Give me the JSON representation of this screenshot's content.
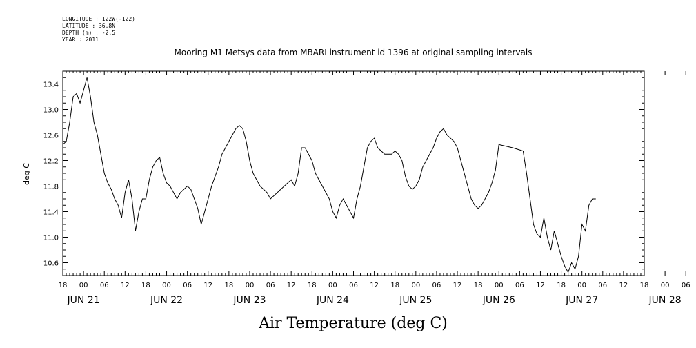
{
  "header": {
    "longitude": "LONGITUDE : 122W(-122)",
    "latitude": "LATITUDE : 36.8N",
    "depth": "DEPTH (m) : -2.5",
    "year": "YEAR : 2011"
  },
  "chart_data": {
    "type": "line",
    "title": "Mooring M1 Metsys data from MBARI instrument id 1396 at original sampling intervals",
    "xlabel": "Air Temperature (deg C)",
    "ylabel": "deg C",
    "ylim": [
      10.4,
      13.6
    ],
    "xlim_hours": [
      -6,
      162
    ],
    "y_ticks": [
      "10.6",
      "11.0",
      "11.4",
      "11.8",
      "12.2",
      "12.6",
      "13.0",
      "13.4"
    ],
    "x_hour_ticks": [
      "18",
      "00",
      "06",
      "12",
      "18",
      "00",
      "06",
      "12",
      "18",
      "00",
      "06",
      "12",
      "18",
      "00",
      "06",
      "12",
      "18",
      "00",
      "06",
      "12",
      "18",
      "00",
      "06",
      "12",
      "18",
      "00",
      "06",
      "12",
      "18",
      "00",
      "06",
      "12",
      "18"
    ],
    "x_day_ticks": [
      "JUN 21",
      "JUN 22",
      "JUN 23",
      "JUN 24",
      "JUN 25",
      "JUN 26",
      "JUN 27",
      "JUN 28"
    ],
    "grid": false,
    "series": [
      {
        "color": "#000000",
        "points": [
          [
            -6,
            12.45
          ],
          [
            -5,
            12.5
          ],
          [
            -4,
            12.8
          ],
          [
            -3,
            13.2
          ],
          [
            -2,
            13.25
          ],
          [
            -1,
            13.1
          ],
          [
            0,
            13.3
          ],
          [
            1,
            13.5
          ],
          [
            2,
            13.2
          ],
          [
            3,
            12.8
          ],
          [
            4,
            12.6
          ],
          [
            5,
            12.3
          ],
          [
            6,
            12.0
          ],
          [
            7,
            11.85
          ],
          [
            8,
            11.75
          ],
          [
            9,
            11.6
          ],
          [
            10,
            11.5
          ],
          [
            11,
            11.3
          ],
          [
            12,
            11.7
          ],
          [
            13,
            11.9
          ],
          [
            14,
            11.6
          ],
          [
            15,
            11.1
          ],
          [
            16,
            11.4
          ],
          [
            17,
            11.6
          ],
          [
            18,
            11.6
          ],
          [
            19,
            11.9
          ],
          [
            20,
            12.1
          ],
          [
            21,
            12.2
          ],
          [
            22,
            12.25
          ],
          [
            23,
            12.0
          ],
          [
            24,
            11.85
          ],
          [
            25,
            11.8
          ],
          [
            26,
            11.7
          ],
          [
            27,
            11.6
          ],
          [
            28,
            11.7
          ],
          [
            29,
            11.75
          ],
          [
            30,
            11.8
          ],
          [
            31,
            11.75
          ],
          [
            32,
            11.6
          ],
          [
            33,
            11.45
          ],
          [
            34,
            11.2
          ],
          [
            35,
            11.4
          ],
          [
            36,
            11.6
          ],
          [
            37,
            11.8
          ],
          [
            38,
            11.95
          ],
          [
            39,
            12.1
          ],
          [
            40,
            12.3
          ],
          [
            41,
            12.4
          ],
          [
            42,
            12.5
          ],
          [
            43,
            12.6
          ],
          [
            44,
            12.7
          ],
          [
            45,
            12.75
          ],
          [
            46,
            12.7
          ],
          [
            47,
            12.5
          ],
          [
            48,
            12.2
          ],
          [
            49,
            12.0
          ],
          [
            50,
            11.9
          ],
          [
            51,
            11.8
          ],
          [
            52,
            11.75
          ],
          [
            53,
            11.7
          ],
          [
            54,
            11.6
          ],
          [
            55,
            11.65
          ],
          [
            56,
            11.7
          ],
          [
            57,
            11.75
          ],
          [
            58,
            11.8
          ],
          [
            59,
            11.85
          ],
          [
            60,
            11.9
          ],
          [
            61,
            11.8
          ],
          [
            62,
            12.0
          ],
          [
            63,
            12.4
          ],
          [
            64,
            12.4
          ],
          [
            65,
            12.3
          ],
          [
            66,
            12.2
          ],
          [
            67,
            12.0
          ],
          [
            68,
            11.9
          ],
          [
            69,
            11.8
          ],
          [
            70,
            11.7
          ],
          [
            71,
            11.6
          ],
          [
            72,
            11.4
          ],
          [
            73,
            11.3
          ],
          [
            74,
            11.5
          ],
          [
            75,
            11.6
          ],
          [
            76,
            11.5
          ],
          [
            77,
            11.4
          ],
          [
            78,
            11.3
          ],
          [
            79,
            11.6
          ],
          [
            80,
            11.8
          ],
          [
            81,
            12.1
          ],
          [
            82,
            12.4
          ],
          [
            83,
            12.5
          ],
          [
            84,
            12.55
          ],
          [
            85,
            12.4
          ],
          [
            86,
            12.35
          ],
          [
            87,
            12.3
          ],
          [
            88,
            12.3
          ],
          [
            89,
            12.3
          ],
          [
            90,
            12.35
          ],
          [
            91,
            12.3
          ],
          [
            92,
            12.2
          ],
          [
            93,
            11.95
          ],
          [
            94,
            11.8
          ],
          [
            95,
            11.75
          ],
          [
            96,
            11.8
          ],
          [
            97,
            11.9
          ],
          [
            98,
            12.1
          ],
          [
            99,
            12.2
          ],
          [
            100,
            12.3
          ],
          [
            101,
            12.4
          ],
          [
            102,
            12.55
          ],
          [
            103,
            12.65
          ],
          [
            104,
            12.7
          ],
          [
            105,
            12.6
          ],
          [
            106,
            12.55
          ],
          [
            107,
            12.5
          ],
          [
            108,
            12.4
          ],
          [
            109,
            12.2
          ],
          [
            110,
            12.0
          ],
          [
            111,
            11.8
          ],
          [
            112,
            11.6
          ],
          [
            113,
            11.5
          ],
          [
            114,
            11.45
          ],
          [
            115,
            11.5
          ],
          [
            116,
            11.6
          ],
          [
            117,
            11.7
          ],
          [
            118,
            11.85
          ],
          [
            119,
            12.05
          ],
          [
            120,
            12.45
          ],
          [
            124,
            12.4
          ],
          [
            127,
            12.35
          ],
          [
            128,
            12.0
          ],
          [
            129,
            11.6
          ],
          [
            130,
            11.2
          ],
          [
            131,
            11.05
          ],
          [
            132,
            11.0
          ],
          [
            133,
            11.3
          ],
          [
            134,
            11.0
          ],
          [
            135,
            10.8
          ],
          [
            136,
            11.1
          ],
          [
            137,
            10.9
          ],
          [
            138,
            10.7
          ],
          [
            139,
            10.55
          ],
          [
            140,
            10.45
          ],
          [
            141,
            10.6
          ],
          [
            142,
            10.5
          ],
          [
            143,
            10.7
          ],
          [
            144,
            11.2
          ],
          [
            145,
            11.1
          ],
          [
            146,
            11.5
          ],
          [
            147,
            11.6
          ],
          [
            148,
            11.6
          ]
        ]
      }
    ]
  }
}
